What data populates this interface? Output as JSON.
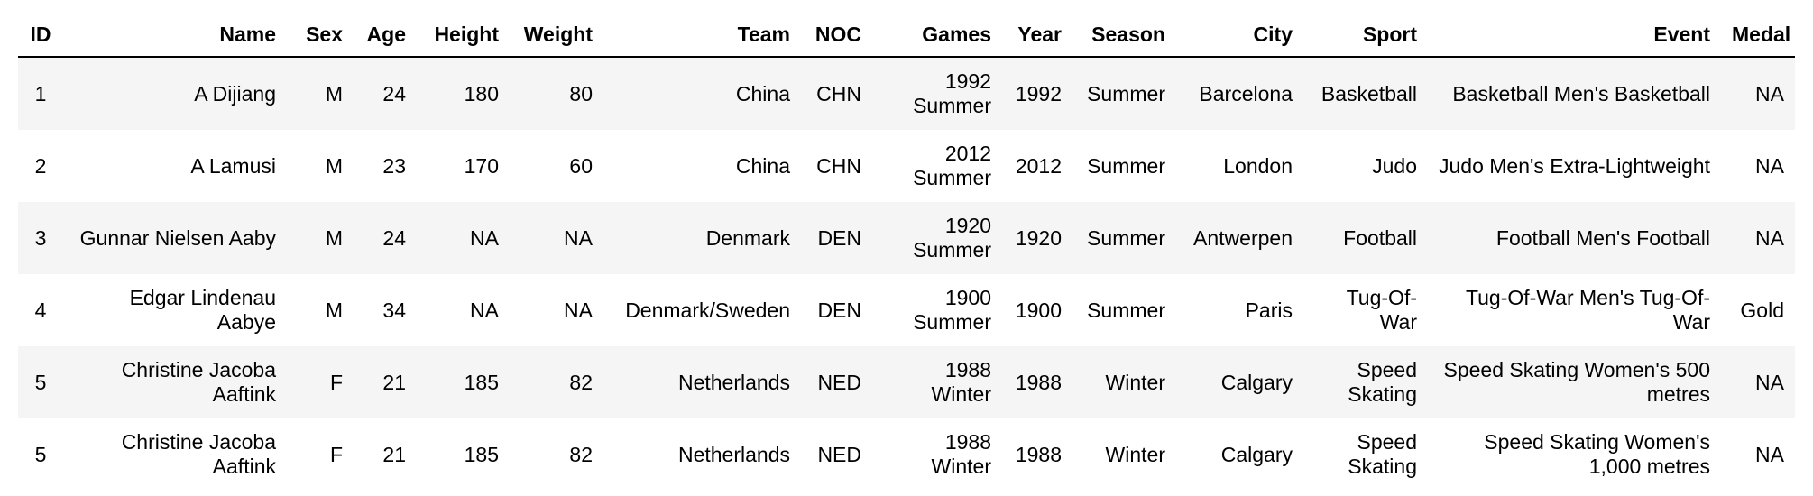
{
  "table": {
    "columns": [
      "ID",
      "Name",
      "Sex",
      "Age",
      "Height",
      "Weight",
      "Team",
      "NOC",
      "Games",
      "Year",
      "Season",
      "City",
      "Sport",
      "Event",
      "Medal"
    ],
    "rows": [
      [
        "1",
        "A Dijiang",
        "M",
        "24",
        "180",
        "80",
        "China",
        "CHN",
        "1992 Summer",
        "1992",
        "Summer",
        "Barcelona",
        "Basketball",
        "Basketball Men's Basketball",
        "NA"
      ],
      [
        "2",
        "A Lamusi",
        "M",
        "23",
        "170",
        "60",
        "China",
        "CHN",
        "2012 Summer",
        "2012",
        "Summer",
        "London",
        "Judo",
        "Judo Men's Extra-Lightweight",
        "NA"
      ],
      [
        "3",
        "Gunnar Nielsen Aaby",
        "M",
        "24",
        "NA",
        "NA",
        "Denmark",
        "DEN",
        "1920 Summer",
        "1920",
        "Summer",
        "Antwerpen",
        "Football",
        "Football Men's Football",
        "NA"
      ],
      [
        "4",
        "Edgar Lindenau Aabye",
        "M",
        "34",
        "NA",
        "NA",
        "Denmark/Sweden",
        "DEN",
        "1900 Summer",
        "1900",
        "Summer",
        "Paris",
        "Tug-Of-War",
        "Tug-Of-War Men's Tug-Of-War",
        "Gold"
      ],
      [
        "5",
        "Christine Jacoba Aaftink",
        "F",
        "21",
        "185",
        "82",
        "Netherlands",
        "NED",
        "1988 Winter",
        "1988",
        "Winter",
        "Calgary",
        "Speed Skating",
        "Speed Skating Women's 500 metres",
        "NA"
      ],
      [
        "5",
        "Christine Jacoba Aaftink",
        "F",
        "21",
        "185",
        "82",
        "Netherlands",
        "NED",
        "1988 Winter",
        "1988",
        "Winter",
        "Calgary",
        "Speed Skating",
        "Speed Skating Women's 1,000 metres",
        "NA"
      ]
    ]
  }
}
